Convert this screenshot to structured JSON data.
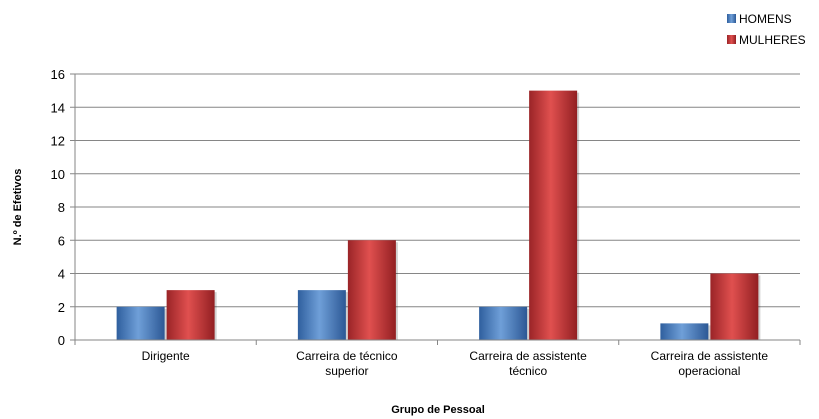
{
  "chart_data": {
    "type": "bar",
    "title": "",
    "xlabel": "Grupo de Pessoal",
    "ylabel": "N.º de Efetivos",
    "ylim": [
      0,
      16
    ],
    "yticks": [
      0,
      2,
      4,
      6,
      8,
      10,
      12,
      14,
      16
    ],
    "categories": [
      [
        "Dirigente"
      ],
      [
        "Carreira de técnico",
        "superior"
      ],
      [
        "Carreira de assistente",
        "técnico"
      ],
      [
        "Carreira de assistente",
        "operacional"
      ]
    ],
    "series": [
      {
        "name": "HOMENS",
        "color": "#4a7ebf",
        "values": [
          2,
          3,
          2,
          1
        ]
      },
      {
        "name": "MULHERES",
        "color": "#c0393b",
        "values": [
          3,
          6,
          15,
          4
        ]
      }
    ],
    "grid": true,
    "legend_position": "top-right"
  }
}
